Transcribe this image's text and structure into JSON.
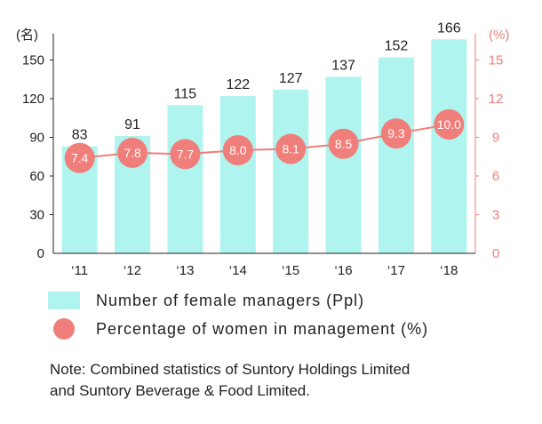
{
  "colors": {
    "bar": "#aff4ee",
    "line": "#f07e7a",
    "axis_left": "#222222",
    "axis_right": "#f07e7a",
    "grid": "#cccccc"
  },
  "legend": {
    "bar_label": "Number of female managers (Ppl)",
    "line_label": "Percentage of women in management (%)"
  },
  "note": {
    "line1": "Note: Combined statistics of Suntory Holdings Limited",
    "line2": "and Suntory Beverage & Food Limited."
  },
  "chart_data": {
    "type": "bar",
    "categories": [
      "‘11",
      "‘12",
      "‘13",
      "‘14",
      "‘15",
      "‘16",
      "‘17",
      "‘18"
    ],
    "series": [
      {
        "name": "Number of female managers (Ppl)",
        "type": "bar",
        "axis": "left",
        "values": [
          83,
          91,
          115,
          122,
          127,
          137,
          152,
          166
        ]
      },
      {
        "name": "Percentage of women in management (%)",
        "type": "line",
        "axis": "right",
        "values": [
          7.4,
          7.8,
          7.7,
          8.0,
          8.1,
          8.5,
          9.3,
          10.0
        ],
        "labels": [
          "7.4",
          "7.8",
          "7.7",
          "8.0",
          "8.1",
          "8.5",
          "9.3",
          "10.0"
        ]
      }
    ],
    "left_axis": {
      "unit": "(名)",
      "ticks": [
        0,
        30,
        60,
        90,
        120,
        150
      ],
      "ylim": [
        0,
        165
      ]
    },
    "right_axis": {
      "unit": "(%)",
      "ticks": [
        0,
        3,
        6,
        9,
        12,
        15
      ],
      "ylim": [
        0,
        16.5
      ]
    },
    "grid": false
  }
}
